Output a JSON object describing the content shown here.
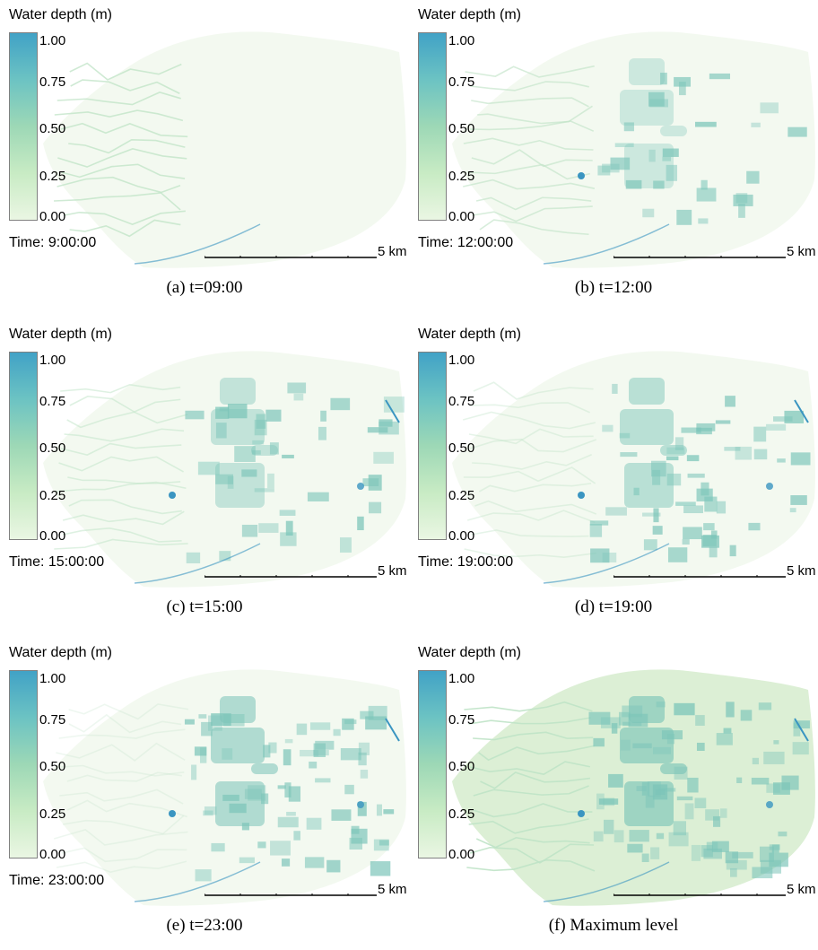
{
  "colors": {
    "scale": [
      "#eaf6e3",
      "#c8ebc4",
      "#9dd8b6",
      "#6cc3c3",
      "#41a2c6"
    ],
    "map_fill": "#dcefd5",
    "channel": "#bfe3c6",
    "patch": "#7cc5b9",
    "deep": "#3a95c1"
  },
  "legend": {
    "title": "Water depth (m)",
    "ticks": [
      "1.00",
      "0.75",
      "0.50",
      "0.25",
      "0.00"
    ]
  },
  "scalebar_label": "5 km",
  "panels": [
    {
      "time": "Time: 9:00:00",
      "caption": "(a) t=09:00",
      "level": 0
    },
    {
      "time": "Time: 12:00:00",
      "caption": "(b) t=12:00",
      "level": 1
    },
    {
      "time": "Time: 15:00:00",
      "caption": "(c) t=15:00",
      "level": 2
    },
    {
      "time": "Time: 19:00:00",
      "caption": "(d) t=19:00",
      "level": 3
    },
    {
      "time": "Time: 23:00:00",
      "caption": "(e) t=23:00",
      "level": 4
    },
    {
      "time": "",
      "caption": "(f) Maximum level",
      "level": 5
    }
  ]
}
